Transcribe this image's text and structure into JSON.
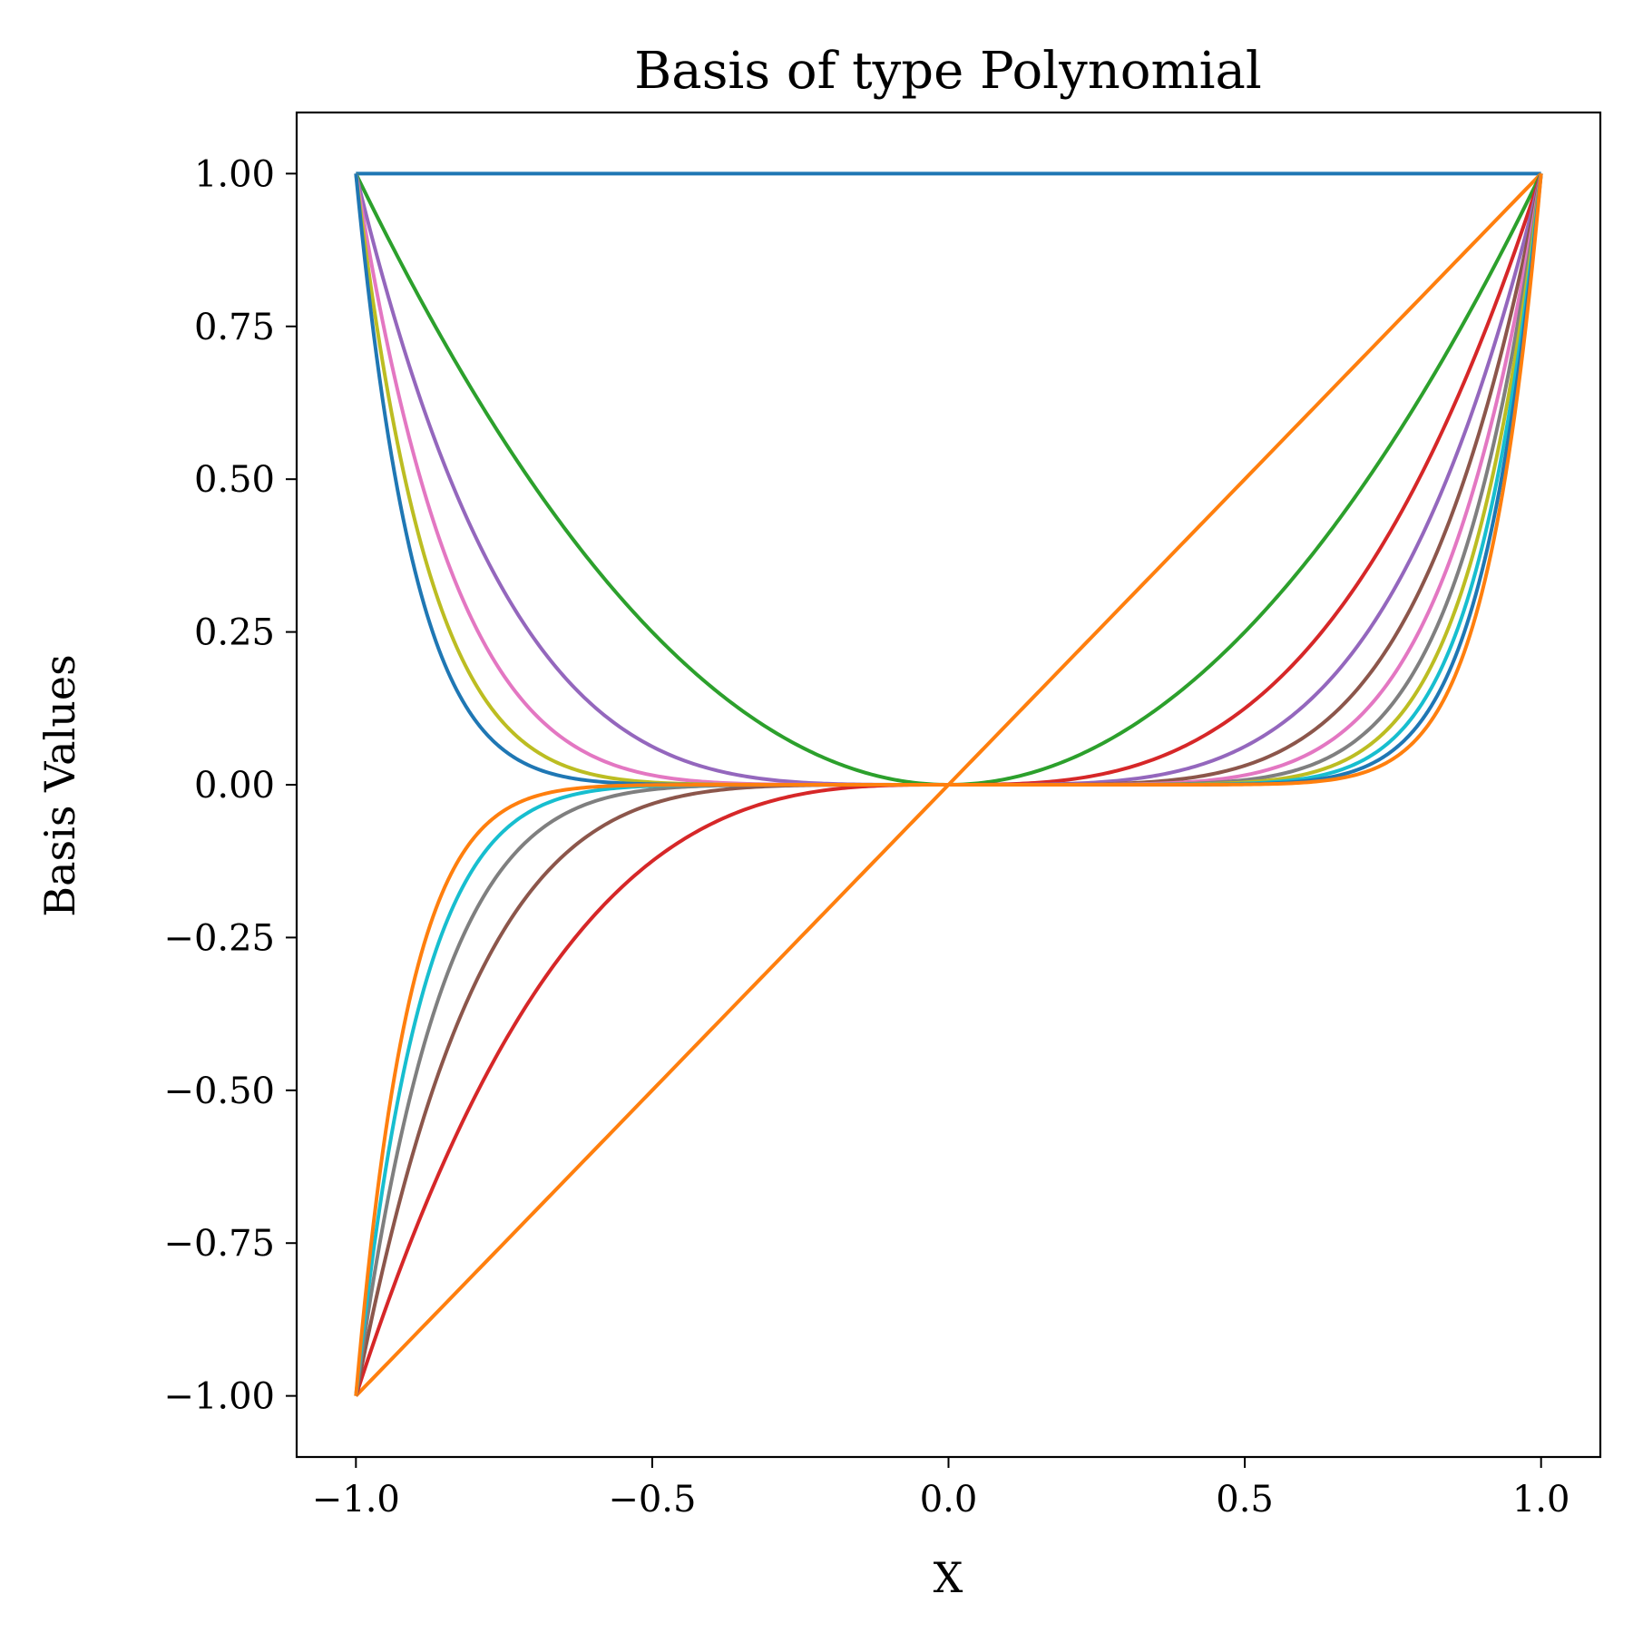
{
  "chart_data": {
    "type": "line",
    "title": "Basis of type Polynomial",
    "xlabel": "X",
    "ylabel": "Basis Values",
    "xlim": [
      -1.1,
      1.1
    ],
    "ylim": [
      -1.1,
      1.1
    ],
    "x_ticks": [
      -1.0,
      -0.5,
      0.0,
      0.5,
      1.0
    ],
    "x_tick_labels": [
      "−1.0",
      "−0.5",
      "0.0",
      "0.5",
      "1.0"
    ],
    "y_ticks": [
      -1.0,
      -0.75,
      -0.5,
      -0.25,
      0.0,
      0.25,
      0.5,
      0.75,
      1.0
    ],
    "y_tick_labels": [
      "−1.00",
      "−0.75",
      "−0.50",
      "−0.25",
      "0.00",
      "0.25",
      "0.50",
      "0.75",
      "1.00"
    ],
    "grid": false,
    "legend": "none",
    "x": [
      -1.0,
      -0.9,
      -0.8,
      -0.7,
      -0.6,
      -0.5,
      -0.4,
      -0.3,
      -0.2,
      -0.1,
      0.0,
      0.1,
      0.2,
      0.3,
      0.4,
      0.5,
      0.6,
      0.7,
      0.8,
      0.9,
      1.0
    ],
    "series": [
      {
        "color": "#1f77b4",
        "values": [
          1.0,
          1.0,
          1.0,
          1.0,
          1.0,
          1.0,
          1.0,
          1.0,
          1.0,
          1.0,
          1.0,
          1.0,
          1.0,
          1.0,
          1.0,
          1.0,
          1.0,
          1.0,
          1.0,
          1.0,
          1.0
        ]
      },
      {
        "color": "#ff7f0e",
        "values": [
          -1.0,
          -0.9,
          -0.8,
          -0.7,
          -0.6,
          -0.5,
          -0.4,
          -0.3,
          -0.2,
          -0.1,
          0.0,
          0.1,
          0.2,
          0.3,
          0.4,
          0.5,
          0.6,
          0.7,
          0.8,
          0.9,
          1.0
        ]
      },
      {
        "color": "#2ca02c",
        "values": [
          1.0,
          0.81,
          0.64,
          0.49,
          0.36,
          0.25,
          0.16,
          0.09,
          0.04,
          0.01,
          0.0,
          0.01,
          0.04,
          0.09,
          0.16,
          0.25,
          0.36,
          0.49,
          0.64,
          0.81,
          1.0
        ]
      },
      {
        "color": "#d62728",
        "values": [
          -1.0,
          -0.729,
          -0.512,
          -0.343,
          -0.216,
          -0.125,
          -0.064,
          -0.027,
          -0.008,
          -0.001,
          0.0,
          0.001,
          0.008,
          0.027,
          0.064,
          0.125,
          0.216,
          0.343,
          0.512,
          0.729,
          1.0
        ]
      },
      {
        "color": "#9467bd",
        "values": [
          1.0,
          0.6561,
          0.4096,
          0.2401,
          0.1296,
          0.0625,
          0.0256,
          0.0081,
          0.0016,
          0.0001,
          0.0,
          0.0001,
          0.0016,
          0.0081,
          0.0256,
          0.0625,
          0.1296,
          0.2401,
          0.4096,
          0.6561,
          1.0
        ]
      },
      {
        "color": "#8c564b",
        "values": [
          -1.0,
          -0.5905,
          -0.3277,
          -0.1681,
          -0.0778,
          -0.0313,
          -0.0102,
          -0.0024,
          -0.0003,
          0.0,
          0.0,
          0.0,
          0.0003,
          0.0024,
          0.0102,
          0.0313,
          0.0778,
          0.1681,
          0.3277,
          0.5905,
          1.0
        ]
      },
      {
        "color": "#e377c2",
        "values": [
          1.0,
          0.5314,
          0.2621,
          0.1176,
          0.0467,
          0.0156,
          0.0041,
          0.0007,
          0.0001,
          0.0,
          0.0,
          0.0,
          0.0001,
          0.0007,
          0.0041,
          0.0156,
          0.0467,
          0.1176,
          0.2621,
          0.5314,
          1.0
        ]
      },
      {
        "color": "#7f7f7f",
        "values": [
          -1.0,
          -0.4783,
          -0.2097,
          -0.0824,
          -0.028,
          -0.0078,
          -0.0016,
          -0.0002,
          0.0,
          0.0,
          0.0,
          0.0,
          0.0,
          0.0002,
          0.0016,
          0.0078,
          0.028,
          0.0824,
          0.2097,
          0.4783,
          1.0
        ]
      },
      {
        "color": "#bcbd22",
        "values": [
          1.0,
          0.4305,
          0.1678,
          0.0576,
          0.0168,
          0.0039,
          0.0007,
          0.0001,
          0.0,
          0.0,
          0.0,
          0.0,
          0.0,
          0.0001,
          0.0007,
          0.0039,
          0.0168,
          0.0576,
          0.1678,
          0.4305,
          1.0
        ]
      },
      {
        "color": "#17becf",
        "values": [
          -1.0,
          -0.3874,
          -0.1342,
          -0.0404,
          -0.0101,
          -0.002,
          -0.0003,
          0.0,
          0.0,
          0.0,
          0.0,
          0.0,
          0.0,
          0.0,
          0.0003,
          0.002,
          0.0101,
          0.0404,
          0.1342,
          0.3874,
          1.0
        ]
      },
      {
        "color": "#1f77b4",
        "values": [
          1.0,
          0.3487,
          0.1074,
          0.0282,
          0.006,
          0.001,
          0.0001,
          0.0,
          0.0,
          0.0,
          0.0,
          0.0,
          0.0,
          0.0,
          0.0001,
          0.001,
          0.006,
          0.0282,
          0.1074,
          0.3487,
          1.0
        ]
      },
      {
        "color": "#ff7f0e",
        "values": [
          -1.0,
          -0.3138,
          -0.0859,
          -0.0198,
          -0.0036,
          -0.0005,
          0.0,
          0.0,
          0.0,
          0.0,
          0.0,
          0.0,
          0.0,
          0.0,
          0.0,
          0.0005,
          0.0036,
          0.0198,
          0.0859,
          0.3138,
          1.0
        ]
      }
    ]
  }
}
